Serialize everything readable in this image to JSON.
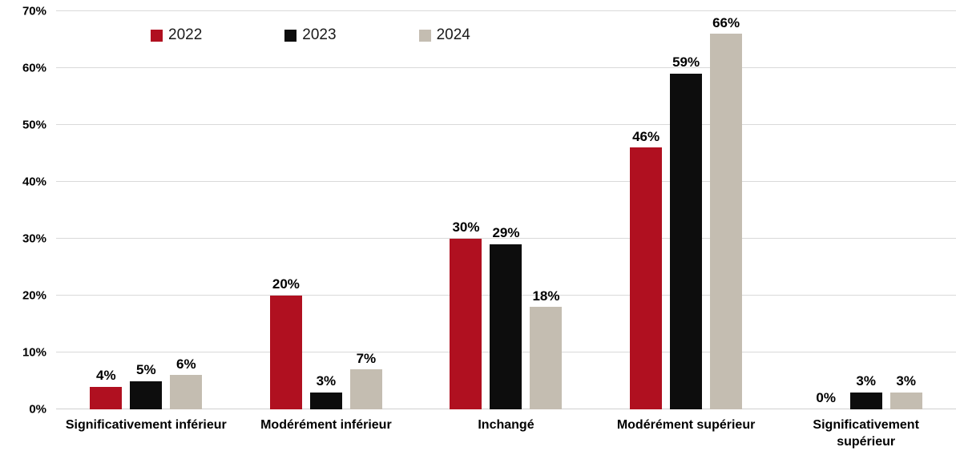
{
  "chart_data": {
    "type": "bar",
    "title": "",
    "categories": [
      "Significativement inférieur",
      "Modérément inférieur",
      "Inchangé",
      "Modérément supérieur",
      "Significativement supérieur"
    ],
    "series": [
      {
        "name": "2022",
        "color": "#b01020",
        "values": [
          4,
          20,
          30,
          46,
          0
        ]
      },
      {
        "name": "2023",
        "color": "#0d0d0d",
        "values": [
          5,
          3,
          29,
          59,
          3
        ]
      },
      {
        "name": "2024",
        "color": "#c4bdb1",
        "values": [
          6,
          7,
          18,
          66,
          3
        ]
      }
    ],
    "value_suffix": "%",
    "ylim": [
      0,
      70
    ],
    "ytick_step": 10,
    "ytick_labels": [
      "0%",
      "10%",
      "20%",
      "30%",
      "40%",
      "50%",
      "60%",
      "70%"
    ],
    "grid": true,
    "data_labels": true,
    "legend_position": "top-left-inset"
  },
  "colors": {
    "background": "#ffffff",
    "gridline": "#d9d9d9",
    "axis_text": "#000000"
  }
}
